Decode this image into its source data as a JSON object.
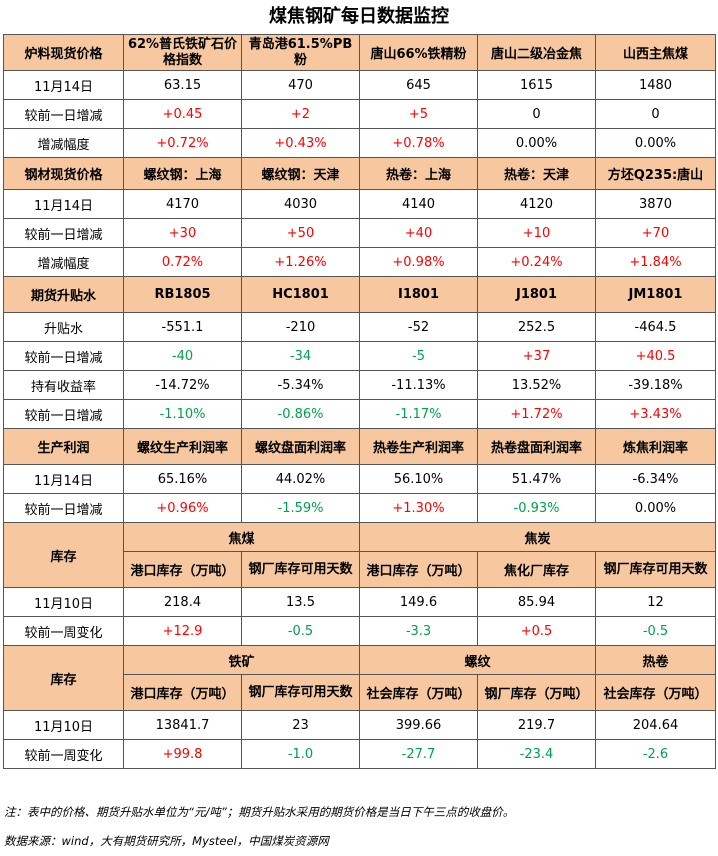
{
  "title": "煤焦钢矿每日数据监控",
  "raw": {
    "section": "炉料现货价格",
    "cols": [
      "62%普氏铁矿石价格指数",
      "青岛港61.5%PB粉",
      "唐山66%铁精粉",
      "唐山二级冶金焦",
      "山西主焦煤"
    ],
    "rows": [
      {
        "label": "11月14日",
        "values": [
          "63.15",
          "470",
          "645",
          "1615",
          "1480"
        ]
      },
      {
        "label": "较前一日增减",
        "values": [
          "+0.45",
          "+2",
          "+5",
          "0",
          "0"
        ]
      },
      {
        "label": "增减幅度",
        "values": [
          "+0.72%",
          "+0.43%",
          "+0.78%",
          "0.00%",
          "0.00%"
        ]
      }
    ]
  },
  "steel": {
    "section": "钢材现货价格",
    "cols": [
      "螺纹钢：上海",
      "螺纹钢：天津",
      "热卷：上海",
      "热卷：天津",
      "方坯Q235:唐山"
    ],
    "rows": [
      {
        "label": "11月14日",
        "values": [
          "4170",
          "4030",
          "4140",
          "4120",
          "3870"
        ]
      },
      {
        "label": "较前一日增减",
        "values": [
          "+30",
          "+50",
          "+40",
          "+10",
          "+70"
        ]
      },
      {
        "label": "增减幅度",
        "values": [
          "0.72%",
          "+1.26%",
          "+0.98%",
          "+0.24%",
          "+1.84%"
        ]
      }
    ]
  },
  "futures": {
    "section": "期货升贴水",
    "cols": [
      "RB1805",
      "HC1801",
      "I1801",
      "J1801",
      "JM1801"
    ],
    "rows": [
      {
        "label": "升贴水",
        "values": [
          "-551.1",
          "-210",
          "-52",
          "252.5",
          "-464.5"
        ]
      },
      {
        "label": "较前一日增减",
        "values": [
          "-40",
          "-34",
          "-5",
          "+37",
          "+40.5"
        ]
      },
      {
        "label": "持有收益率",
        "values": [
          "-14.72%",
          "-5.34%",
          "-11.13%",
          "13.52%",
          "-39.18%"
        ]
      },
      {
        "label": "较前一日增减",
        "values": [
          "-1.10%",
          "-0.86%",
          "-1.17%",
          "+1.72%",
          "+3.43%"
        ]
      }
    ]
  },
  "profit": {
    "section": "生产利润",
    "cols": [
      "螺纹生产利润率",
      "螺纹盘面利润率",
      "热卷生产利润率",
      "热卷盘面利润率",
      "炼焦利润率"
    ],
    "rows": [
      {
        "label": "11月14日",
        "values": [
          "65.16%",
          "44.02%",
          "56.10%",
          "51.47%",
          "-6.34%"
        ]
      },
      {
        "label": "较前一日增减",
        "values": [
          "+0.96%",
          "-1.59%",
          "+1.30%",
          "-0.93%",
          "0.00%"
        ]
      }
    ]
  },
  "inv1": {
    "section": "库存",
    "groups": [
      "焦煤",
      "焦炭"
    ],
    "cols": [
      "港口库存（万吨）",
      "钢厂库存可用天数",
      "港口库存（万吨）",
      "焦化厂库存",
      "钢厂库存可用天数"
    ],
    "rows": [
      {
        "label": "11月10日",
        "values": [
          "218.4",
          "13.5",
          "149.6",
          "85.94",
          "12"
        ]
      },
      {
        "label": "较前一周变化",
        "values": [
          "+12.9",
          "-0.5",
          "-3.3",
          "+0.5",
          "-0.5"
        ]
      }
    ]
  },
  "inv2": {
    "section": "库存",
    "groups": [
      "铁矿",
      "螺纹",
      "热卷"
    ],
    "cols": [
      "港口库存（万吨）",
      "钢厂库存可用天数",
      "社会库存（万吨）",
      "钢厂库存（万吨）",
      "社会库存（万吨）"
    ],
    "rows": [
      {
        "label": "11月10日",
        "values": [
          "13841.7",
          "23",
          "399.66",
          "219.7",
          "204.64"
        ]
      },
      {
        "label": "较前一周变化",
        "values": [
          "+99.8",
          "-1.0",
          "-27.7",
          "-23.4",
          "-2.6"
        ]
      }
    ]
  },
  "note": "注：表中的价格、期货升贴水单位为“元/吨”；期货升贴水采用的期货价格是当日下午三点的收盘价。",
  "source": "数据来源：wind，大有期货研究所，Mysteel，中国煤炭资源网",
  "colors": {
    "header_bg": "#f7c8a0",
    "positive": "#ff0000",
    "negative": "#00a14b"
  }
}
